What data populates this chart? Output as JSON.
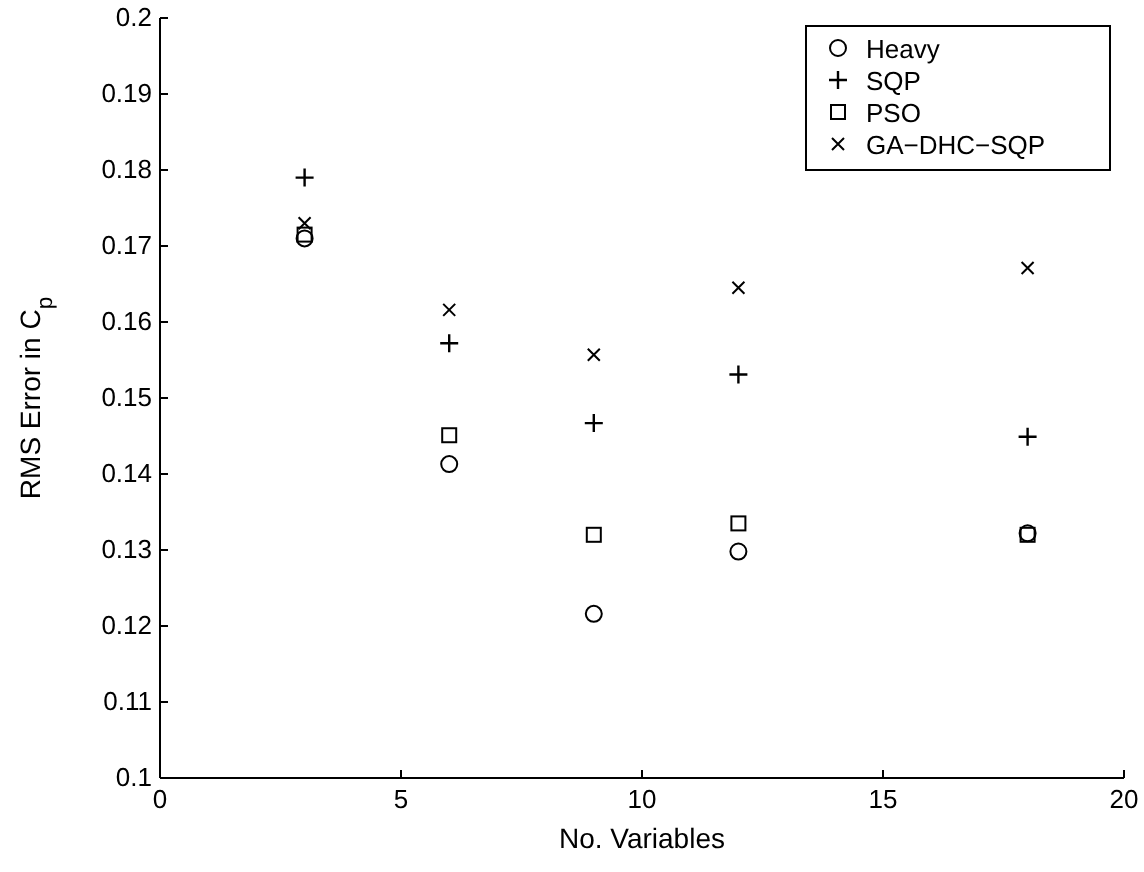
{
  "chart_data": {
    "type": "scatter",
    "xlabel": "No. Variables",
    "ylabel": "RMS Error in C$_{p}$",
    "x": [
      3,
      6,
      9,
      12,
      18
    ],
    "xlim": [
      0,
      20
    ],
    "xticks": [
      0,
      5,
      10,
      15,
      20
    ],
    "ylim": [
      0.1,
      0.2
    ],
    "yticks": [
      0.1,
      0.11,
      0.12,
      0.13,
      0.14,
      0.15,
      0.16,
      0.17,
      0.18,
      0.19,
      0.2
    ],
    "grid": false,
    "legend": "top right",
    "series": [
      {
        "name": "Heavy",
        "color": "#000000",
        "marker": "circle",
        "values": [
          0.171,
          0.1413,
          0.1216,
          0.1298,
          0.1322
        ]
      },
      {
        "name": "SQP",
        "color": "#000000",
        "marker": "plus",
        "values": [
          0.179,
          0.1572,
          0.1467,
          0.1531,
          0.1449
        ]
      },
      {
        "name": "PSO",
        "color": "#000000",
        "marker": "square",
        "values": [
          0.1715,
          0.1451,
          0.132,
          0.1335,
          0.132
        ]
      },
      {
        "name": "GA−DHC−SQP",
        "color": "#000000",
        "marker": "cross",
        "values": [
          0.173,
          0.1616,
          0.1557,
          0.1645,
          0.1671
        ]
      }
    ]
  }
}
